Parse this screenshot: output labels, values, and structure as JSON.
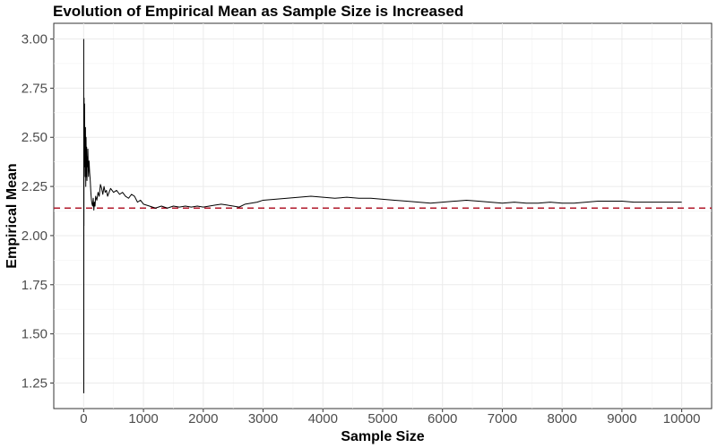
{
  "chart_data": {
    "type": "line",
    "title": "Evolution of Empirical Mean as Sample Size is Increased",
    "xlabel": "Sample Size",
    "ylabel": "Empirical Mean",
    "xlim": [
      -500,
      10500
    ],
    "ylim": [
      1.12,
      3.08
    ],
    "x_ticks": [
      0,
      1000,
      2000,
      3000,
      4000,
      5000,
      6000,
      7000,
      8000,
      9000,
      10000
    ],
    "y_ticks": [
      1.25,
      1.5,
      1.75,
      2.0,
      2.25,
      2.5,
      2.75,
      3.0
    ],
    "x_tick_labels": [
      "0",
      "1000",
      "2000",
      "3000",
      "4000",
      "5000",
      "6000",
      "7000",
      "8000",
      "9000",
      "10000"
    ],
    "y_tick_labels": [
      "1.25",
      "1.50",
      "1.75",
      "2.00",
      "2.25",
      "2.50",
      "2.75",
      "3.00"
    ],
    "grid": true,
    "reference_line": {
      "y": 2.14,
      "style": "dashed",
      "color": "#b2182b"
    },
    "line_color": "#000000",
    "series": [
      {
        "x": [
          1,
          2,
          3,
          4,
          5,
          6,
          7,
          8,
          10,
          12,
          15,
          18,
          20,
          25,
          30,
          35,
          40,
          45,
          50,
          55,
          60,
          65,
          70,
          80,
          90,
          100,
          110,
          120,
          130,
          140,
          150,
          160,
          170,
          180,
          190,
          200,
          220,
          240,
          260,
          280,
          300,
          320,
          340,
          360,
          380,
          400,
          450,
          500,
          550,
          600,
          650,
          700,
          750,
          800,
          850,
          900,
          950,
          1000,
          1100,
          1200,
          1300,
          1400,
          1500,
          1600,
          1700,
          1800,
          1900,
          2000,
          2100,
          2200,
          2300,
          2400,
          2500,
          2600,
          2700,
          2800,
          2900,
          3000,
          3200,
          3400,
          3600,
          3800,
          4000,
          4200,
          4400,
          4600,
          4800,
          5000,
          5200,
          5400,
          5600,
          5800,
          6000,
          6200,
          6400,
          6600,
          6800,
          7000,
          7200,
          7400,
          7600,
          7800,
          8000,
          8200,
          8400,
          8600,
          8800,
          9000,
          9200,
          9400,
          9600,
          9800,
          10000
        ],
        "y": [
          3.0,
          1.2,
          2.3,
          2.05,
          2.6,
          2.45,
          2.7,
          2.5,
          2.65,
          2.4,
          2.67,
          2.35,
          2.5,
          2.3,
          2.55,
          2.25,
          2.5,
          2.3,
          2.45,
          2.28,
          2.4,
          2.35,
          2.44,
          2.3,
          2.38,
          2.32,
          2.28,
          2.22,
          2.18,
          2.16,
          2.15,
          2.19,
          2.13,
          2.17,
          2.15,
          2.2,
          2.18,
          2.22,
          2.2,
          2.26,
          2.24,
          2.21,
          2.25,
          2.22,
          2.23,
          2.2,
          2.24,
          2.22,
          2.23,
          2.21,
          2.22,
          2.2,
          2.19,
          2.21,
          2.2,
          2.17,
          2.18,
          2.16,
          2.15,
          2.14,
          2.15,
          2.14,
          2.15,
          2.145,
          2.15,
          2.145,
          2.15,
          2.145,
          2.15,
          2.155,
          2.16,
          2.155,
          2.15,
          2.145,
          2.16,
          2.165,
          2.17,
          2.18,
          2.185,
          2.19,
          2.195,
          2.2,
          2.195,
          2.19,
          2.195,
          2.19,
          2.19,
          2.185,
          2.18,
          2.175,
          2.17,
          2.165,
          2.17,
          2.175,
          2.18,
          2.175,
          2.17,
          2.165,
          2.17,
          2.165,
          2.165,
          2.17,
          2.165,
          2.165,
          2.17,
          2.175,
          2.175,
          2.175,
          2.17,
          2.17,
          2.17,
          2.17,
          2.17
        ]
      }
    ]
  }
}
